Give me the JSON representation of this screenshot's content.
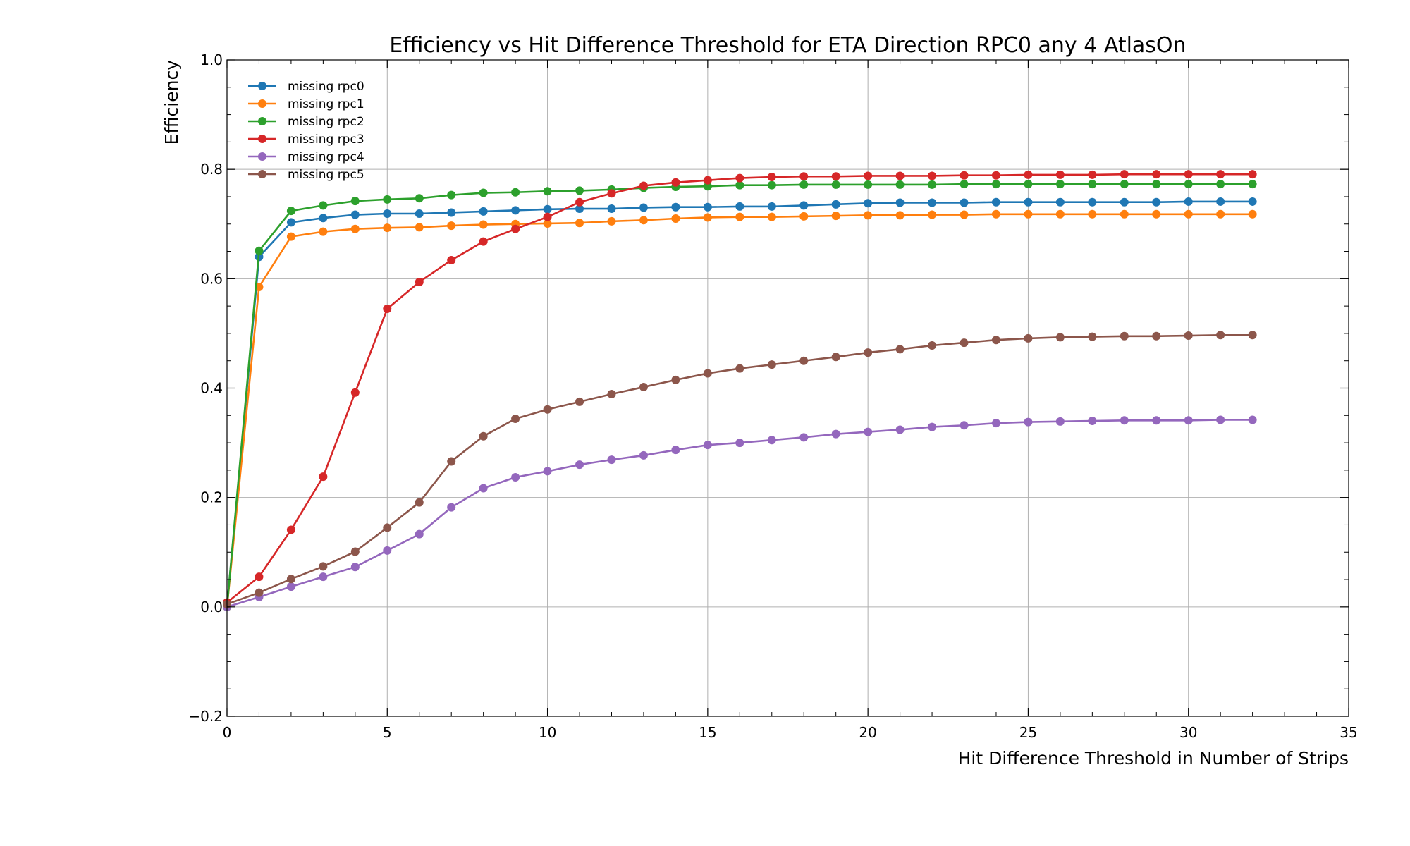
{
  "chart_data": {
    "type": "line",
    "title": "Efficiency vs Hit Difference Threshold for ETA Direction RPC0 any 4 AtlasOn",
    "xlabel": "Hit Difference Threshold in Number of Strips",
    "ylabel": "Efficiency",
    "xlim": [
      0,
      35
    ],
    "ylim": [
      -0.2,
      1.0
    ],
    "x_ticks": [
      "0",
      "5",
      "10",
      "15",
      "20",
      "25",
      "30",
      "35"
    ],
    "y_ticks": [
      "−0.2",
      "0.0",
      "0.2",
      "0.4",
      "0.6",
      "0.8",
      "1.0"
    ],
    "grid": true,
    "legend_position": "top-left",
    "x": [
      0,
      1,
      2,
      3,
      4,
      5,
      6,
      7,
      8,
      9,
      10,
      11,
      12,
      13,
      14,
      15,
      16,
      17,
      18,
      19,
      20,
      21,
      22,
      23,
      24,
      25,
      26,
      27,
      28,
      29,
      30,
      31,
      32
    ],
    "series": [
      {
        "name": "missing rpc0",
        "color": "#1f77b4",
        "values": [
          0.0,
          0.64,
          0.703,
          0.711,
          0.717,
          0.719,
          0.719,
          0.721,
          0.723,
          0.725,
          0.727,
          0.728,
          0.728,
          0.73,
          0.731,
          0.731,
          0.732,
          0.732,
          0.734,
          0.736,
          0.738,
          0.739,
          0.739,
          0.739,
          0.74,
          0.74,
          0.74,
          0.74,
          0.74,
          0.74,
          0.741,
          0.741,
          0.741
        ]
      },
      {
        "name": "missing rpc1",
        "color": "#ff7f0e",
        "values": [
          0.0,
          0.585,
          0.677,
          0.686,
          0.691,
          0.693,
          0.694,
          0.697,
          0.699,
          0.7,
          0.701,
          0.702,
          0.705,
          0.707,
          0.71,
          0.712,
          0.713,
          0.713,
          0.714,
          0.715,
          0.716,
          0.716,
          0.717,
          0.717,
          0.718,
          0.718,
          0.718,
          0.718,
          0.718,
          0.718,
          0.718,
          0.718,
          0.718
        ]
      },
      {
        "name": "missing rpc2",
        "color": "#2ca02c",
        "values": [
          0.0,
          0.651,
          0.724,
          0.734,
          0.742,
          0.745,
          0.747,
          0.753,
          0.757,
          0.758,
          0.76,
          0.761,
          0.763,
          0.766,
          0.768,
          0.769,
          0.771,
          0.771,
          0.772,
          0.772,
          0.772,
          0.772,
          0.772,
          0.773,
          0.773,
          0.773,
          0.773,
          0.773,
          0.773,
          0.773,
          0.773,
          0.773,
          0.773
        ]
      },
      {
        "name": "missing rpc3",
        "color": "#d62728",
        "values": [
          0.008,
          0.055,
          0.141,
          0.238,
          0.392,
          0.545,
          0.594,
          0.634,
          0.668,
          0.691,
          0.713,
          0.74,
          0.756,
          0.77,
          0.776,
          0.78,
          0.784,
          0.786,
          0.787,
          0.787,
          0.788,
          0.788,
          0.788,
          0.789,
          0.789,
          0.79,
          0.79,
          0.79,
          0.791,
          0.791,
          0.791,
          0.791,
          0.791
        ]
      },
      {
        "name": "missing rpc4",
        "color": "#9467bd",
        "values": [
          0.0,
          0.018,
          0.037,
          0.055,
          0.073,
          0.103,
          0.133,
          0.182,
          0.217,
          0.237,
          0.248,
          0.26,
          0.269,
          0.277,
          0.287,
          0.296,
          0.3,
          0.305,
          0.31,
          0.316,
          0.32,
          0.324,
          0.329,
          0.332,
          0.336,
          0.338,
          0.339,
          0.34,
          0.341,
          0.341,
          0.341,
          0.342,
          0.342
        ]
      },
      {
        "name": "missing rpc5",
        "color": "#8c564b",
        "values": [
          0.005,
          0.026,
          0.051,
          0.074,
          0.101,
          0.145,
          0.191,
          0.266,
          0.312,
          0.344,
          0.361,
          0.375,
          0.389,
          0.402,
          0.415,
          0.427,
          0.436,
          0.443,
          0.45,
          0.457,
          0.465,
          0.471,
          0.478,
          0.483,
          0.488,
          0.491,
          0.493,
          0.494,
          0.495,
          0.495,
          0.496,
          0.497,
          0.497
        ]
      }
    ]
  }
}
